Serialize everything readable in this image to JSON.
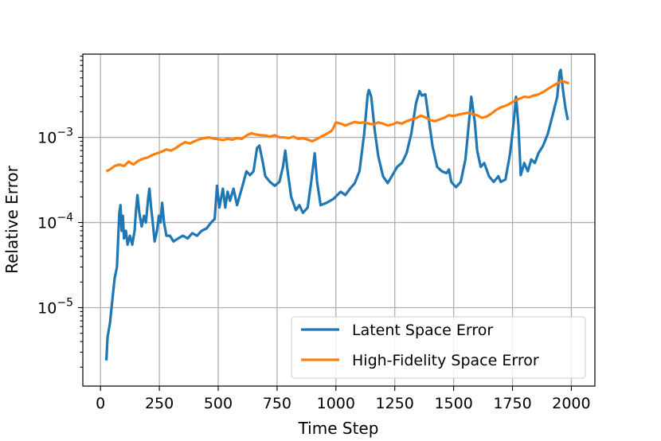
{
  "chart_data": {
    "type": "line",
    "title": "",
    "xlabel": "Time Step",
    "ylabel": "Relative Error",
    "xlim": [
      -75,
      2100
    ],
    "ylim": [
      1.2e-06,
      0.0095
    ],
    "yscale": "log",
    "grid": true,
    "legend_position": "lower-right",
    "x_ticks": [
      0,
      250,
      500,
      750,
      1000,
      1250,
      1500,
      1750,
      2000
    ],
    "x_tick_labels": [
      "0",
      "250",
      "500",
      "750",
      "1000",
      "1250",
      "1500",
      "1750",
      "2000"
    ],
    "y_ticks": [
      1e-05,
      0.0001,
      0.001
    ],
    "y_tick_labels": [
      {
        "base": "10",
        "exp": "−5"
      },
      {
        "base": "10",
        "exp": "−4"
      },
      {
        "base": "10",
        "exp": "−3"
      }
    ],
    "series": [
      {
        "name": "Latent Space Error",
        "color": "#1f77b4",
        "points": [
          [
            25,
            2.4e-06
          ],
          [
            30,
            4.5e-06
          ],
          [
            40,
            6.5e-06
          ],
          [
            50,
            1.2e-05
          ],
          [
            60,
            2.2e-05
          ],
          [
            70,
            3e-05
          ],
          [
            80,
            0.00013
          ],
          [
            85,
            0.00016
          ],
          [
            90,
            8e-05
          ],
          [
            95,
            0.00012
          ],
          [
            100,
            6.5e-05
          ],
          [
            108,
            8e-05
          ],
          [
            115,
            5.5e-05
          ],
          [
            125,
            7e-05
          ],
          [
            135,
            5.5e-05
          ],
          [
            145,
            8e-05
          ],
          [
            150,
            0.00013
          ],
          [
            157,
            0.00021
          ],
          [
            165,
            0.00013
          ],
          [
            175,
            9e-05
          ],
          [
            185,
            0.00012
          ],
          [
            193,
            0.0001
          ],
          [
            203,
            0.0002
          ],
          [
            208,
            0.00025
          ],
          [
            215,
            0.00015
          ],
          [
            222,
            0.0001
          ],
          [
            230,
            6e-05
          ],
          [
            240,
            8e-05
          ],
          [
            248,
            0.00012
          ],
          [
            255,
            0.0001
          ],
          [
            262,
            0.00017
          ],
          [
            270,
            0.0001
          ],
          [
            280,
            7e-05
          ],
          [
            295,
            7e-05
          ],
          [
            310,
            6e-05
          ],
          [
            330,
            6.5e-05
          ],
          [
            350,
            7e-05
          ],
          [
            370,
            6.5e-05
          ],
          [
            390,
            7.5e-05
          ],
          [
            410,
            7e-05
          ],
          [
            430,
            8e-05
          ],
          [
            450,
            8.5e-05
          ],
          [
            470,
            0.0001
          ],
          [
            485,
            0.00011
          ],
          [
            495,
            0.00027
          ],
          [
            505,
            0.00015
          ],
          [
            520,
            0.00025
          ],
          [
            530,
            0.00015
          ],
          [
            540,
            0.00023
          ],
          [
            550,
            0.00018
          ],
          [
            565,
            0.00025
          ],
          [
            580,
            0.00016
          ],
          [
            600,
            0.00025
          ],
          [
            620,
            0.0004
          ],
          [
            635,
            0.00036
          ],
          [
            650,
            0.0004
          ],
          [
            665,
            0.00075
          ],
          [
            675,
            0.0008
          ],
          [
            690,
            0.0005
          ],
          [
            700,
            0.00035
          ],
          [
            720,
            0.0003
          ],
          [
            740,
            0.00027
          ],
          [
            760,
            0.0003
          ],
          [
            775,
            0.00045
          ],
          [
            785,
            0.0007
          ],
          [
            795,
            0.0004
          ],
          [
            810,
            0.0002
          ],
          [
            830,
            0.00014
          ],
          [
            845,
            0.00016
          ],
          [
            860,
            0.00013
          ],
          [
            880,
            0.00015
          ],
          [
            895,
            0.0003
          ],
          [
            910,
            0.00065
          ],
          [
            920,
            0.0003
          ],
          [
            935,
            0.00016
          ],
          [
            960,
            0.00017
          ],
          [
            990,
            0.00019
          ],
          [
            1020,
            0.00023
          ],
          [
            1040,
            0.00021
          ],
          [
            1060,
            0.00025
          ],
          [
            1080,
            0.00029
          ],
          [
            1100,
            0.0004
          ],
          [
            1120,
            0.0011
          ],
          [
            1135,
            0.0032
          ],
          [
            1140,
            0.0036
          ],
          [
            1150,
            0.003
          ],
          [
            1165,
            0.0012
          ],
          [
            1180,
            0.0006
          ],
          [
            1200,
            0.00035
          ],
          [
            1220,
            0.00029
          ],
          [
            1240,
            0.00036
          ],
          [
            1260,
            0.00045
          ],
          [
            1280,
            0.0005
          ],
          [
            1300,
            0.00065
          ],
          [
            1320,
            0.0011
          ],
          [
            1340,
            0.0025
          ],
          [
            1355,
            0.0035
          ],
          [
            1365,
            0.0031
          ],
          [
            1380,
            0.0032
          ],
          [
            1390,
            0.002
          ],
          [
            1410,
            0.0008
          ],
          [
            1430,
            0.00045
          ],
          [
            1450,
            0.0004
          ],
          [
            1470,
            0.00038
          ],
          [
            1480,
            0.00042
          ],
          [
            1490,
            0.0003
          ],
          [
            1510,
            0.00026
          ],
          [
            1530,
            0.0003
          ],
          [
            1550,
            0.00055
          ],
          [
            1565,
            0.0015
          ],
          [
            1575,
            0.003
          ],
          [
            1590,
            0.0015
          ],
          [
            1600,
            0.0007
          ],
          [
            1615,
            0.00045
          ],
          [
            1630,
            0.0005
          ],
          [
            1650,
            0.00035
          ],
          [
            1670,
            0.0003
          ],
          [
            1690,
            0.00035
          ],
          [
            1700,
            0.0003
          ],
          [
            1720,
            0.00032
          ],
          [
            1740,
            0.00065
          ],
          [
            1755,
            0.0015
          ],
          [
            1765,
            0.003
          ],
          [
            1775,
            0.0014
          ],
          [
            1785,
            0.00036
          ],
          [
            1800,
            0.0005
          ],
          [
            1815,
            0.0004
          ],
          [
            1830,
            0.00055
          ],
          [
            1845,
            0.0005
          ],
          [
            1860,
            0.00065
          ],
          [
            1880,
            0.0008
          ],
          [
            1900,
            0.0011
          ],
          [
            1920,
            0.0018
          ],
          [
            1940,
            0.003
          ],
          [
            1950,
            0.0058
          ],
          [
            1955,
            0.0062
          ],
          [
            1965,
            0.0035
          ],
          [
            1975,
            0.0022
          ],
          [
            1985,
            0.0016
          ]
        ]
      },
      {
        "name": "High-Fidelity Space Error",
        "color": "#ff7f0e",
        "points": [
          [
            25,
            0.0004
          ],
          [
            40,
            0.00042
          ],
          [
            60,
            0.00046
          ],
          [
            80,
            0.00048
          ],
          [
            100,
            0.00046
          ],
          [
            120,
            0.00052
          ],
          [
            140,
            0.00048
          ],
          [
            160,
            0.00053
          ],
          [
            180,
            0.00056
          ],
          [
            200,
            0.00058
          ],
          [
            220,
            0.00062
          ],
          [
            240,
            0.00065
          ],
          [
            260,
            0.00068
          ],
          [
            280,
            0.00072
          ],
          [
            300,
            0.0007
          ],
          [
            320,
            0.00075
          ],
          [
            340,
            0.00082
          ],
          [
            360,
            0.00088
          ],
          [
            380,
            0.00085
          ],
          [
            400,
            0.0009
          ],
          [
            420,
            0.00095
          ],
          [
            440,
            0.00098
          ],
          [
            460,
            0.001
          ],
          [
            480,
            0.00097
          ],
          [
            500,
            0.00095
          ],
          [
            520,
            0.00093
          ],
          [
            540,
            0.00096
          ],
          [
            560,
            0.00094
          ],
          [
            580,
            0.00098
          ],
          [
            600,
            0.00096
          ],
          [
            620,
            0.00105
          ],
          [
            640,
            0.00112
          ],
          [
            660,
            0.00108
          ],
          [
            680,
            0.00106
          ],
          [
            700,
            0.00105
          ],
          [
            720,
            0.00102
          ],
          [
            740,
            0.00106
          ],
          [
            760,
            0.001
          ],
          [
            780,
            0.001
          ],
          [
            800,
            0.00098
          ],
          [
            820,
            0.00102
          ],
          [
            840,
            0.00096
          ],
          [
            860,
            0.00098
          ],
          [
            880,
            0.00094
          ],
          [
            900,
            0.0009
          ],
          [
            920,
            0.00096
          ],
          [
            940,
            0.00103
          ],
          [
            960,
            0.0011
          ],
          [
            980,
            0.00118
          ],
          [
            990,
            0.0013
          ],
          [
            1000,
            0.0015
          ],
          [
            1020,
            0.00145
          ],
          [
            1040,
            0.00138
          ],
          [
            1060,
            0.00145
          ],
          [
            1080,
            0.00152
          ],
          [
            1100,
            0.00148
          ],
          [
            1120,
            0.0015
          ],
          [
            1140,
            0.00145
          ],
          [
            1160,
            0.00142
          ],
          [
            1180,
            0.0015
          ],
          [
            1200,
            0.00145
          ],
          [
            1220,
            0.00138
          ],
          [
            1240,
            0.00142
          ],
          [
            1260,
            0.0015
          ],
          [
            1280,
            0.00145
          ],
          [
            1300,
            0.00155
          ],
          [
            1320,
            0.00162
          ],
          [
            1340,
            0.00168
          ],
          [
            1360,
            0.0018
          ],
          [
            1380,
            0.00172
          ],
          [
            1400,
            0.0016
          ],
          [
            1420,
            0.00155
          ],
          [
            1440,
            0.00162
          ],
          [
            1460,
            0.0017
          ],
          [
            1480,
            0.00182
          ],
          [
            1500,
            0.00178
          ],
          [
            1520,
            0.00185
          ],
          [
            1540,
            0.0019
          ],
          [
            1560,
            0.00195
          ],
          [
            1580,
            0.00188
          ],
          [
            1600,
            0.00182
          ],
          [
            1620,
            0.0017
          ],
          [
            1640,
            0.00175
          ],
          [
            1660,
            0.0019
          ],
          [
            1680,
            0.0021
          ],
          [
            1700,
            0.00225
          ],
          [
            1720,
            0.00235
          ],
          [
            1740,
            0.0025
          ],
          [
            1760,
            0.0027
          ],
          [
            1780,
            0.00285
          ],
          [
            1800,
            0.003
          ],
          [
            1820,
            0.00295
          ],
          [
            1840,
            0.0031
          ],
          [
            1860,
            0.0032
          ],
          [
            1880,
            0.0034
          ],
          [
            1900,
            0.0037
          ],
          [
            1920,
            0.004
          ],
          [
            1940,
            0.0043
          ],
          [
            1960,
            0.0046
          ],
          [
            1980,
            0.0044
          ],
          [
            1990,
            0.0043
          ]
        ]
      }
    ]
  }
}
